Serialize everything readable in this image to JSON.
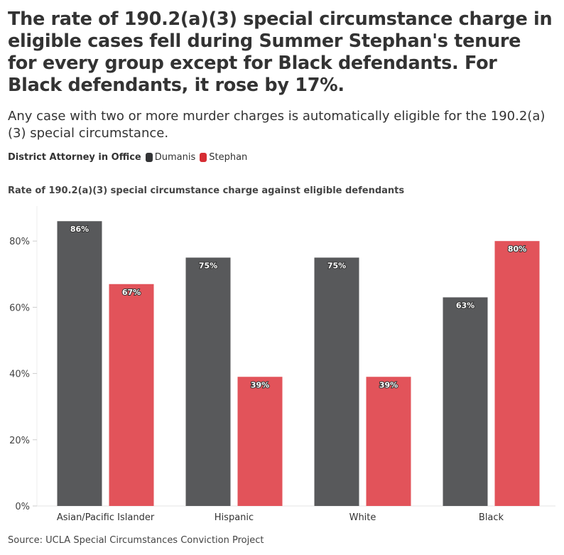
{
  "title": "The rate of 190.2(a)(3) special circumstance charge in eligible cases fell during Summer Stephan's tenure for every group except for Black defendants. For Black defendants, it rose by 17%.",
  "subtitle": "Any case with two or more murder charges is automatically eligible for the 190.2(a)(3) special circumstance.",
  "legend": {
    "title": "District Attorney in Office",
    "items": [
      {
        "label": "Dumanis",
        "color": "#333436"
      },
      {
        "label": "Stephan",
        "color": "#d62d33"
      }
    ]
  },
  "source": "Source: UCLA Special Circumstances Conviction Project",
  "chart_data": {
    "type": "bar",
    "title": "Rate of 190.2(a)(3) special circumstance charge against eligible defendants",
    "categories": [
      "Asian/Pacific Islander",
      "Hispanic",
      "White",
      "Black"
    ],
    "series": [
      {
        "name": "Dumanis",
        "values": [
          86,
          75,
          75,
          63
        ],
        "labels": [
          "86%",
          "75%",
          "75%",
          "63%"
        ],
        "color": "#58595b"
      },
      {
        "name": "Stephan",
        "values": [
          67,
          39,
          39,
          80
        ],
        "labels": [
          "67%",
          "39%",
          "39%",
          "80%"
        ],
        "color": "#e2535a"
      }
    ],
    "ylim": [
      0,
      100
    ],
    "yticks": [
      0,
      20,
      40,
      60,
      80
    ],
    "ytick_labels": [
      "0%",
      "20%",
      "40%",
      "60%",
      "80%"
    ],
    "grid": false,
    "legend_position": "top-left"
  }
}
